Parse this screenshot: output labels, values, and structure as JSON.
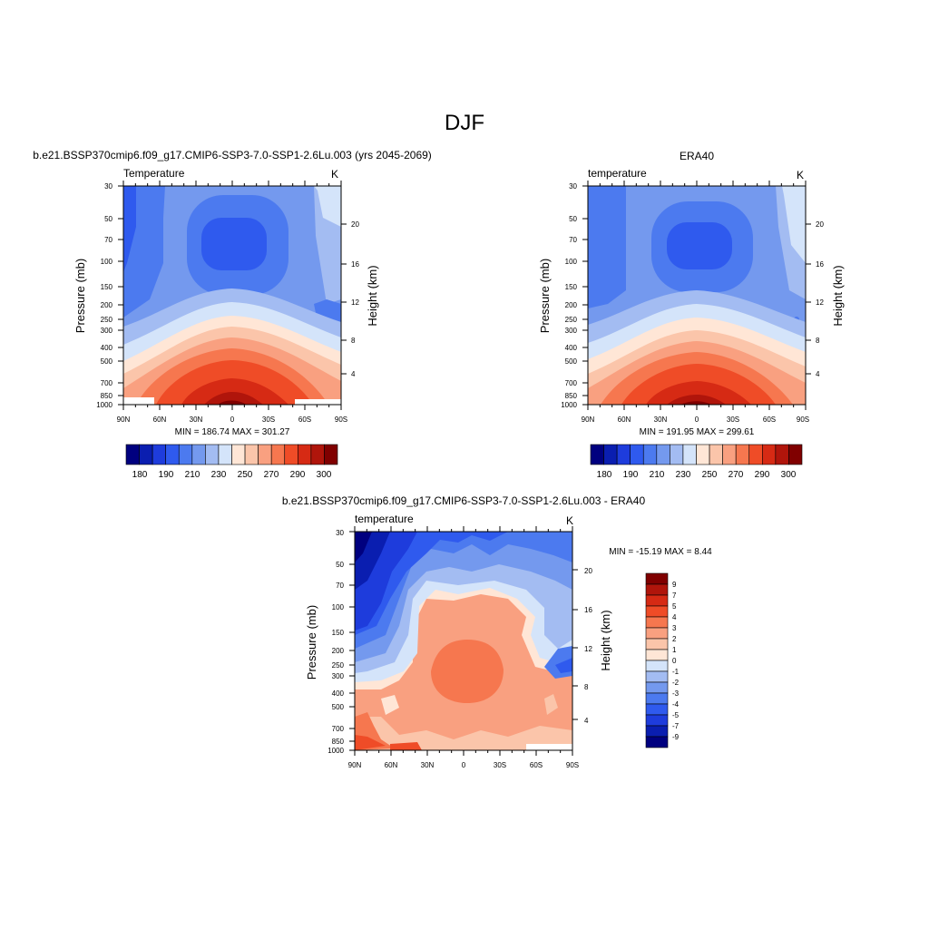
{
  "main_title": "DJF",
  "chart_data": [
    {
      "type": "heatmap",
      "title": "b.e21.BSSP370cmip6.f09_g17.CMIP6-SSP3-7.0-SSP1-2.6Lu.003 (yrs 2045-2069)",
      "left_label": "Temperature",
      "units": "K",
      "xticks": [
        "90N",
        "60N",
        "30N",
        "0",
        "30S",
        "60S",
        "90S"
      ],
      "yticks": [
        "30",
        "50",
        "70",
        "100",
        "150",
        "200",
        "250",
        "300",
        "400",
        "500",
        "700",
        "850",
        "1000"
      ],
      "y2ticks": [
        "20",
        "16",
        "12",
        "8",
        "4"
      ],
      "ylabel": "Pressure (mb)",
      "y2label": "Height (km)",
      "min_max": "MIN = 186.74  MAX = 301.27",
      "colorbar_labels": [
        "180",
        "190",
        "210",
        "230",
        "250",
        "270",
        "290",
        "300"
      ]
    },
    {
      "type": "heatmap",
      "title": "ERA40",
      "left_label": "temperature",
      "units": "K",
      "xticks": [
        "90N",
        "60N",
        "30N",
        "0",
        "30S",
        "60S",
        "90S"
      ],
      "yticks": [
        "30",
        "50",
        "70",
        "100",
        "150",
        "200",
        "250",
        "300",
        "400",
        "500",
        "700",
        "850",
        "1000"
      ],
      "y2ticks": [
        "20",
        "16",
        "12",
        "8",
        "4"
      ],
      "ylabel": "Pressure (mb)",
      "y2label": "Height (km)",
      "min_max": "MIN = 191.95  MAX = 299.61",
      "colorbar_labels": [
        "180",
        "190",
        "210",
        "230",
        "250",
        "270",
        "290",
        "300"
      ]
    },
    {
      "type": "heatmap",
      "title": "b.e21.BSSP370cmip6.f09_g17.CMIP6-SSP3-7.0-SSP1-2.6Lu.003 - ERA40",
      "left_label": "temperature",
      "units": "K",
      "xticks": [
        "90N",
        "60N",
        "30N",
        "0",
        "30S",
        "60S",
        "90S"
      ],
      "yticks": [
        "30",
        "50",
        "70",
        "100",
        "150",
        "200",
        "250",
        "300",
        "400",
        "500",
        "700",
        "850",
        "1000"
      ],
      "y2ticks": [
        "20",
        "16",
        "12",
        "8",
        "4"
      ],
      "ylabel": "Pressure (mb)",
      "y2label": "Height (km)",
      "min_max": "MIN = -15.19  MAX =   8.44",
      "colorbar_labels": [
        "9",
        "7",
        "5",
        "4",
        "3",
        "2",
        "1",
        "0",
        "-1",
        "-2",
        "-3",
        "-4",
        "-5",
        "-7",
        "-9"
      ]
    }
  ],
  "colors": {
    "abs_scale": [
      "#00007f",
      "#0a1eb0",
      "#1e3cdc",
      "#2f5aee",
      "#4c7aef",
      "#7499ee",
      "#a3bcf2",
      "#d4e4fa",
      "#ffe6d6",
      "#fbc5aa",
      "#f9a080",
      "#f6774f",
      "#ef4c27",
      "#d62a14",
      "#b0150b",
      "#800000"
    ],
    "diff_scale": [
      "#800000",
      "#b0150b",
      "#d62a14",
      "#ef4c27",
      "#f6774f",
      "#f9a080",
      "#fbc5aa",
      "#ffe6d6",
      "#d4e4fa",
      "#a3bcf2",
      "#7499ee",
      "#4c7aef",
      "#2f5aee",
      "#1e3cdc",
      "#0a1eb0",
      "#00007f"
    ]
  }
}
